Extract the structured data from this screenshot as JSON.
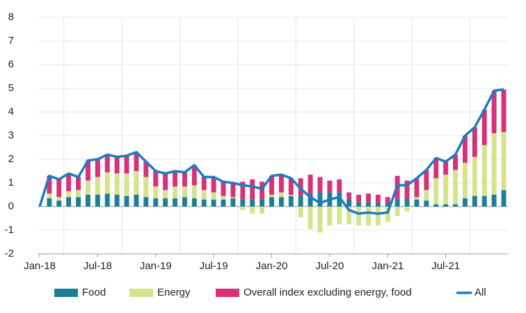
{
  "chart_data": {
    "type": "stacked-bar-line",
    "categories": [
      "Jan-18",
      null,
      null,
      null,
      null,
      null,
      "Jul-18",
      null,
      null,
      null,
      null,
      null,
      "Jan-19",
      null,
      null,
      null,
      null,
      null,
      "Jul-19",
      null,
      null,
      null,
      null,
      null,
      "Jan-20",
      null,
      null,
      null,
      null,
      null,
      "Jul-20",
      null,
      null,
      null,
      null,
      null,
      "Jan-21",
      null,
      null,
      null,
      null,
      null,
      "Jul-21",
      null,
      null,
      null,
      null,
      null,
      null
    ],
    "series": [
      {
        "name": "Food",
        "type": "bar",
        "color": "#1b7f98",
        "values": [
          0,
          0.35,
          0.25,
          0.4,
          0.4,
          0.5,
          0.5,
          0.55,
          0.5,
          0.45,
          0.5,
          0.4,
          0.35,
          0.35,
          0.35,
          0.4,
          0.35,
          0.3,
          0.3,
          0.3,
          0.35,
          0.3,
          0.3,
          0.3,
          0.4,
          0.4,
          0.45,
          0.45,
          0.55,
          0.6,
          0.6,
          0.6,
          0.3,
          0.2,
          0.2,
          0.15,
          0.15,
          0.3,
          0.3,
          0.3,
          0.25,
          0.1,
          0.1,
          0.1,
          0.35,
          0.45,
          0.45,
          0.5,
          0.7
        ]
      },
      {
        "name": "Energy",
        "type": "bar",
        "color": "#d5e48c",
        "values": [
          0,
          0.2,
          0.15,
          0.25,
          0.3,
          0.6,
          0.75,
          0.9,
          0.9,
          0.95,
          1.0,
          0.85,
          0.5,
          0.35,
          0.5,
          0.45,
          0.55,
          0.4,
          0.3,
          0.15,
          0.05,
          -0.15,
          -0.3,
          -0.3,
          0.1,
          0.2,
          0.05,
          -0.45,
          -0.95,
          -1.1,
          -0.8,
          -0.75,
          -0.75,
          -0.8,
          -0.8,
          -0.8,
          -0.65,
          -0.4,
          -0.2,
          0.1,
          0.45,
          1.1,
          1.25,
          1.45,
          1.5,
          1.65,
          2.15,
          2.6,
          2.45
        ]
      },
      {
        "name": "Overall index excluding energy, food",
        "type": "bar",
        "color": "#d6317a",
        "values": [
          0,
          0.75,
          0.75,
          0.75,
          0.55,
          0.85,
          0.75,
          0.75,
          0.7,
          0.75,
          0.8,
          0.65,
          0.65,
          0.7,
          0.65,
          0.6,
          0.85,
          0.55,
          0.65,
          0.6,
          0.6,
          0.75,
          0.85,
          0.75,
          0.8,
          0.75,
          0.7,
          0.75,
          0.8,
          0.65,
          0.5,
          0.55,
          0.3,
          0.3,
          0.35,
          0.35,
          0.25,
          1.0,
          0.8,
          0.8,
          0.85,
          0.85,
          0.55,
          0.65,
          1.15,
          1.25,
          1.5,
          1.8,
          1.8
        ]
      },
      {
        "name": "All",
        "type": "line",
        "color": "#1c7bc0",
        "values": [
          0,
          1.3,
          1.15,
          1.4,
          1.25,
          1.95,
          2.0,
          2.2,
          2.1,
          2.15,
          2.3,
          1.9,
          1.5,
          1.4,
          1.5,
          1.45,
          1.75,
          1.25,
          1.25,
          1.05,
          1.0,
          0.9,
          0.85,
          0.75,
          1.3,
          1.35,
          1.2,
          0.75,
          0.4,
          0.15,
          0.3,
          0.4,
          -0.15,
          -0.3,
          -0.25,
          -0.3,
          -0.25,
          0.9,
          0.9,
          1.2,
          1.55,
          2.05,
          1.9,
          2.2,
          3.0,
          3.35,
          4.1,
          4.9,
          4.95
        ]
      }
    ],
    "ylim": [
      -2,
      8
    ],
    "yticks": [
      -2,
      -1,
      0,
      1,
      2,
      3,
      4,
      5,
      6,
      7,
      8
    ],
    "grid": true,
    "legend": "bottom"
  }
}
